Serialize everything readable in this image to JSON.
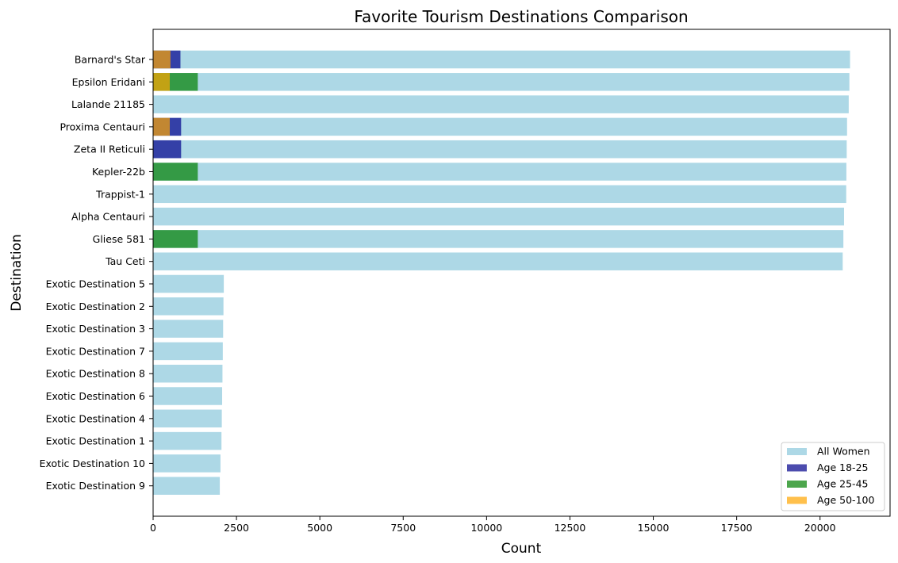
{
  "chart_data": {
    "type": "bar",
    "orientation": "horizontal",
    "title": "Favorite Tourism Destinations Comparison",
    "xlabel": "Count",
    "ylabel": "Destination",
    "xlim": [
      0,
      22100
    ],
    "xticks": [
      0,
      2500,
      5000,
      7500,
      10000,
      12500,
      15000,
      17500,
      20000
    ],
    "grid": false,
    "legend_position": "lower-right",
    "categories": [
      "Barnard's Star",
      "Epsilon Eridani",
      "Lalande 21185",
      "Proxima Centauri",
      "Zeta II Reticuli",
      "Kepler-22b",
      "Trappist-1",
      "Alpha Centauri",
      "Gliese 581",
      "Tau Ceti",
      "Exotic Destination 5",
      "Exotic Destination 2",
      "Exotic Destination 3",
      "Exotic Destination 7",
      "Exotic Destination 8",
      "Exotic Destination 6",
      "Exotic Destination 4",
      "Exotic Destination 1",
      "Exotic Destination 10",
      "Exotic Destination 9"
    ],
    "series": [
      {
        "name": "All Women",
        "color": "#add8e6",
        "opacity": 1.0,
        "values": [
          20900,
          20880,
          20860,
          20810,
          20800,
          20790,
          20785,
          20720,
          20700,
          20680,
          2120,
          2110,
          2100,
          2090,
          2080,
          2070,
          2060,
          2050,
          2020,
          2000
        ]
      },
      {
        "name": "Age 18-25",
        "color": "#00008b",
        "opacity": 0.7,
        "values": [
          820,
          0,
          0,
          840,
          840,
          0,
          0,
          0,
          0,
          0,
          0,
          0,
          0,
          0,
          0,
          0,
          0,
          0,
          0,
          0
        ]
      },
      {
        "name": "Age 25-45",
        "color": "#008000",
        "opacity": 0.7,
        "values": [
          0,
          1340,
          0,
          0,
          0,
          1340,
          0,
          0,
          1340,
          0,
          0,
          0,
          0,
          0,
          0,
          0,
          0,
          0,
          0,
          0
        ]
      },
      {
        "name": "Age 50-100",
        "color": "#ffa500",
        "opacity": 0.7,
        "values": [
          520,
          500,
          0,
          500,
          0,
          0,
          0,
          0,
          0,
          0,
          0,
          0,
          0,
          0,
          0,
          0,
          0,
          0,
          0,
          0
        ]
      }
    ]
  }
}
